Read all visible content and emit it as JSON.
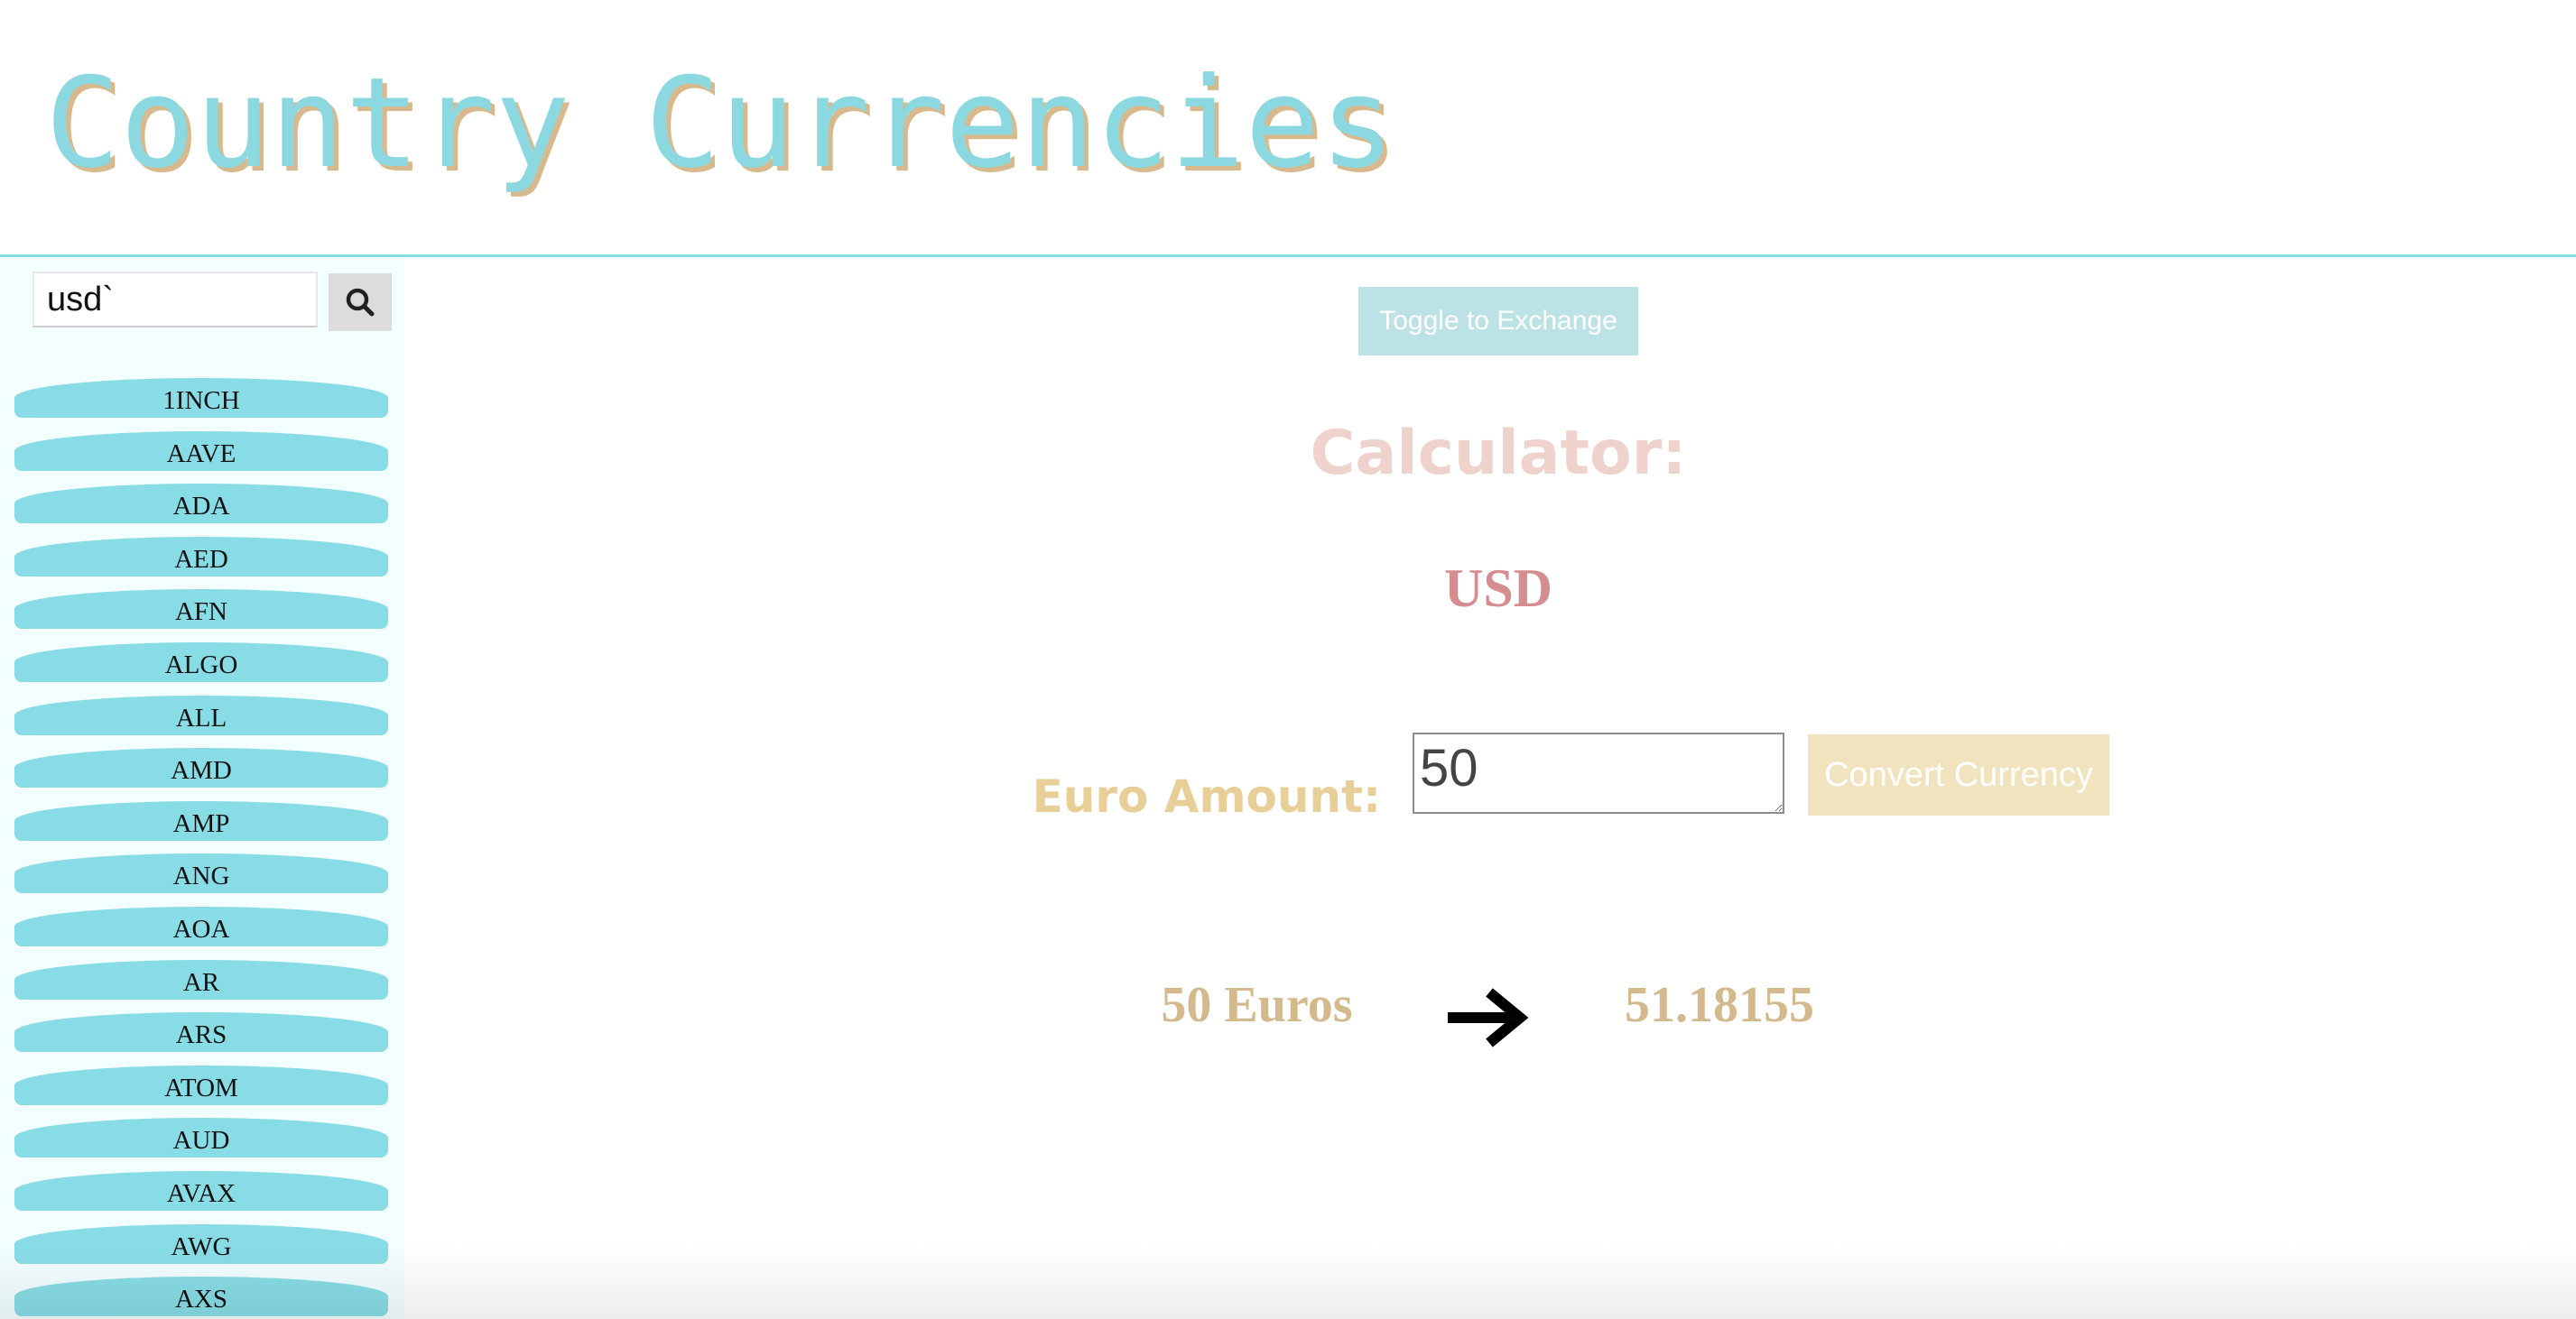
{
  "header": {
    "title": "Country Currencies"
  },
  "sidebar": {
    "search": {
      "value": "usd`",
      "button_icon": "search-icon"
    },
    "currencies": [
      "1INCH",
      "AAVE",
      "ADA",
      "AED",
      "AFN",
      "ALGO",
      "ALL",
      "AMD",
      "AMP",
      "ANG",
      "AOA",
      "AR",
      "ARS",
      "ATOM",
      "AUD",
      "AVAX",
      "AWG",
      "AXS"
    ]
  },
  "main": {
    "toggle_label": "Toggle to Exchange",
    "calculator_heading": "Calculator:",
    "selected_currency": "USD",
    "amount_label": "Euro Amount:",
    "amount_value": "50",
    "convert_label": "Convert Currency",
    "result_from": "50 Euros",
    "result_arrow_icon": "arrow-right-icon",
    "result_to": "51.18155"
  },
  "colors": {
    "accent": "#88dce5",
    "title_shadow": "#d7b98d",
    "toggle_bg": "#bde2e6",
    "convert_bg": "#f2e3bf",
    "currency_code": "#d58d90",
    "amount_label": "#e8cf97",
    "result_text": "#d4b98d",
    "calculator_heading": "#efd2cb"
  }
}
